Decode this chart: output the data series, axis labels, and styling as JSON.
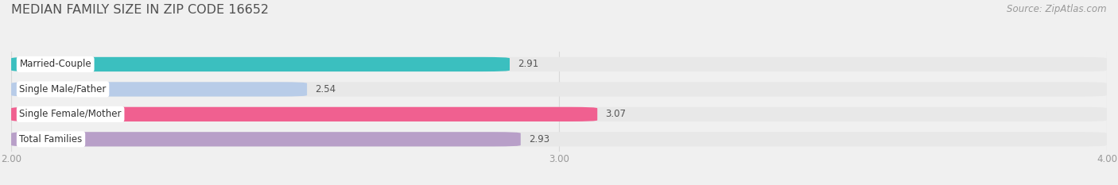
{
  "title": "MEDIAN FAMILY SIZE IN ZIP CODE 16652",
  "source": "Source: ZipAtlas.com",
  "categories": [
    "Married-Couple",
    "Single Male/Father",
    "Single Female/Mother",
    "Total Families"
  ],
  "values": [
    2.91,
    2.54,
    3.07,
    2.93
  ],
  "bar_colors": [
    "#3bbfbf",
    "#b8cce8",
    "#f06090",
    "#b89fc8"
  ],
  "xlim": [
    2.0,
    4.0
  ],
  "xticks": [
    2.0,
    3.0,
    4.0
  ],
  "xtick_labels": [
    "2.00",
    "3.00",
    "4.00"
  ],
  "background_color": "#f0f0f0",
  "bar_background_color": "#e8e8e8",
  "title_fontsize": 11.5,
  "label_fontsize": 8.5,
  "value_fontsize": 8.5,
  "source_fontsize": 8.5,
  "bar_height": 0.58,
  "bar_gap": 0.18,
  "title_color": "#505050",
  "label_color": "#333333",
  "value_color": "#555555",
  "source_color": "#999999",
  "tick_color": "#999999",
  "grid_color": "#d8d8d8",
  "label_bg_color": "#ffffff"
}
